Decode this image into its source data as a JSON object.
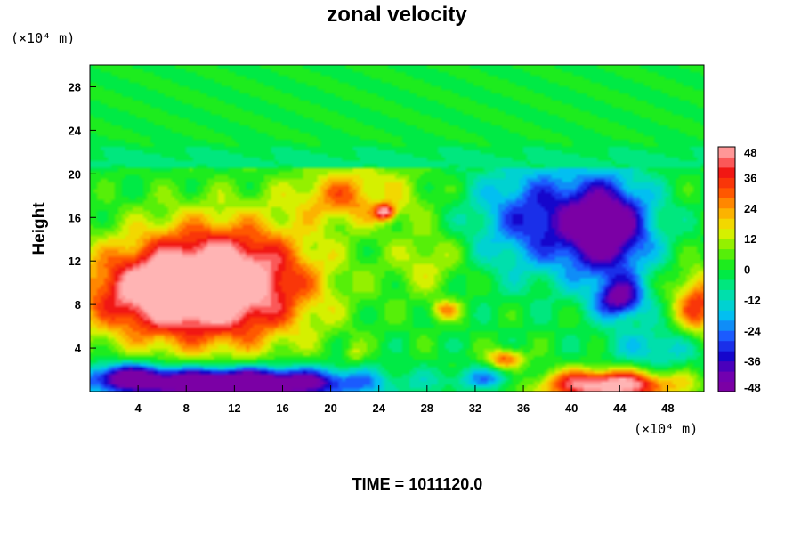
{
  "chart_data": {
    "type": "heatmap",
    "title": "zonal velocity",
    "xlabel": "",
    "ylabel": "Height",
    "x_unit": "(×10⁴ m)",
    "y_unit": "(×10⁴ m)",
    "xlim": [
      0,
      51
    ],
    "ylim": [
      0,
      30
    ],
    "x_ticks": [
      4,
      8,
      12,
      16,
      20,
      24,
      28,
      32,
      36,
      40,
      44,
      48
    ],
    "y_ticks": [
      4,
      8,
      12,
      16,
      20,
      24,
      28
    ],
    "colorbar": {
      "range": [
        -48,
        48
      ],
      "step": 4,
      "ticks": [
        48,
        36,
        24,
        12,
        0,
        -12,
        -24,
        -36,
        -48
      ]
    },
    "field_features": [
      {
        "desc": "upper layer near zero",
        "x": [
          0,
          51
        ],
        "y": [
          20.5,
          30
        ],
        "value": 0
      },
      {
        "desc": "strong westerly core",
        "x": 10,
        "y": 9.5,
        "value": 48
      },
      {
        "desc": "strong easterly core",
        "x": 44,
        "y": 15,
        "value": -40
      },
      {
        "desc": "easterly minimum",
        "x": 43.5,
        "y": 8.5,
        "value": -48
      },
      {
        "desc": "surface easterly band",
        "x": 12,
        "y": 1,
        "value": -48
      },
      {
        "desc": "surface westerly band",
        "x": 44,
        "y": 0.5,
        "value": 46
      }
    ],
    "footer": "TIME = 1011120.0"
  }
}
